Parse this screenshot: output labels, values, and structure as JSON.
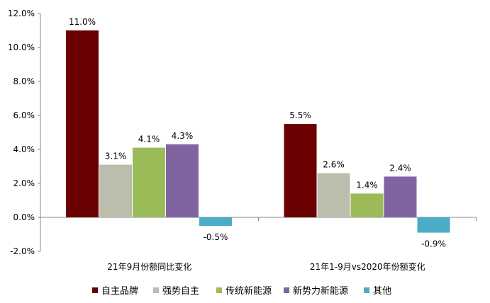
{
  "chart_data": {
    "type": "bar",
    "categories": [
      "21年9月份额同比变化",
      "21年1-9月vs2020年份额变化"
    ],
    "series": [
      {
        "name": "自主品牌",
        "values": [
          11.0,
          5.5
        ],
        "labels": [
          "11.0%",
          "5.5%"
        ],
        "color": "#6b0000"
      },
      {
        "name": "强势自主",
        "values": [
          3.1,
          2.6
        ],
        "labels": [
          "3.1%",
          "2.6%"
        ],
        "color": "#bdbdae"
      },
      {
        "name": "传统新能源",
        "values": [
          4.1,
          1.4
        ],
        "labels": [
          "4.1%",
          "1.4%"
        ],
        "color": "#9bbb59"
      },
      {
        "name": "新势力新能源",
        "values": [
          4.3,
          2.4
        ],
        "labels": [
          "4.3%",
          "2.4%"
        ],
        "color": "#8064a2"
      },
      {
        "name": "其他",
        "values": [
          -0.5,
          -0.9
        ],
        "labels": [
          "-0.5%",
          "-0.9%"
        ],
        "color": "#4bacc6"
      }
    ],
    "ylim": [
      -2.0,
      12.0
    ],
    "yticks": [
      -2.0,
      0.0,
      2.0,
      4.0,
      6.0,
      8.0,
      10.0,
      12.0
    ],
    "ytick_labels": [
      "-2.0%",
      "0.0%",
      "2.0%",
      "4.0%",
      "6.0%",
      "8.0%",
      "10.0%",
      "12.0%"
    ],
    "grid": false,
    "legend_position": "bottom"
  }
}
